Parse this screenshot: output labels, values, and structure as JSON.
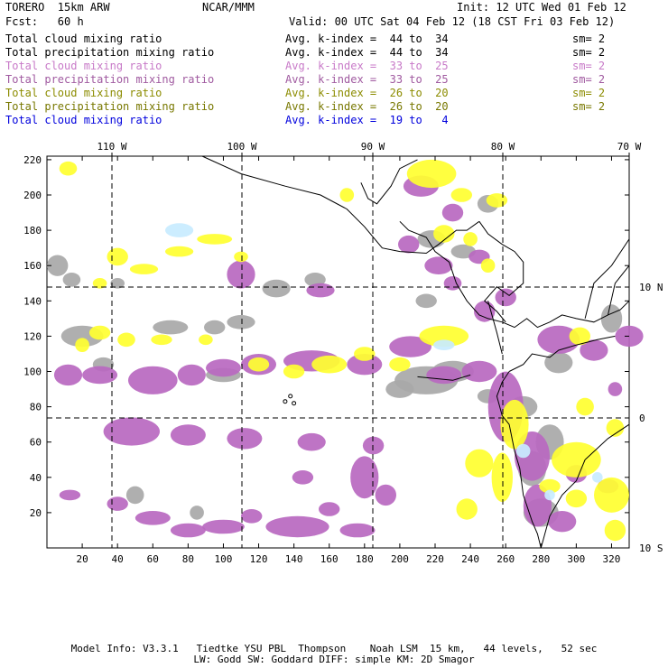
{
  "header": {
    "model": "TORERO  15km ARW",
    "org": "NCAR/MMM",
    "init": "Init: 12 UTC Wed 01 Feb 12",
    "fcst": "Fcst:   60 h",
    "valid": "Valid: 00 UTC Sat 04 Feb 12 (18 CST Fri 03 Feb 12)"
  },
  "legend": [
    {
      "field": "Total cloud mixing ratio",
      "kindex": "Avg. k-index =  44 to  34",
      "sm": "sm= 2",
      "color": "#000000"
    },
    {
      "field": "Total precipitation mixing ratio",
      "kindex": "Avg. k-index =  44 to  34",
      "sm": "sm= 2",
      "color": "#000000"
    },
    {
      "field": "Total cloud mixing ratio",
      "kindex": "Avg. k-index =  33 to  25",
      "sm": "sm= 2",
      "color": "#c87ac8"
    },
    {
      "field": "Total precipitation mixing ratio",
      "kindex": "Avg. k-index =  33 to  25",
      "sm": "sm= 2",
      "color": "#a05aa0"
    },
    {
      "field": "Total cloud mixing ratio",
      "kindex": "Avg. k-index =  26 to  20",
      "sm": "sm= 2",
      "color": "#8c8c00"
    },
    {
      "field": "Total precipitation mixing ratio",
      "kindex": "Avg. k-index =  26 to  20",
      "sm": "sm= 2",
      "color": "#787800"
    },
    {
      "field": "Total cloud mixing ratio",
      "kindex": "Avg. k-index =  19 to   4",
      "sm": "",
      "color": "#0000dd"
    }
  ],
  "map": {
    "lon_labels": [
      "110 W",
      "100 W",
      "90 W",
      "80 W",
      "70 W"
    ],
    "lat_labels": [
      "10 N",
      "0",
      "10 S"
    ],
    "x_ticks": [
      "20",
      "40",
      "60",
      "80",
      "100",
      "120",
      "140",
      "160",
      "180",
      "200",
      "220",
      "240",
      "260",
      "280",
      "300",
      "320"
    ],
    "y_ticks": [
      "20",
      "40",
      "60",
      "80",
      "100",
      "120",
      "140",
      "160",
      "180",
      "200",
      "220"
    ],
    "colors": {
      "gray": "#a8a8a8",
      "purple": "#b868c0",
      "yellow": "#ffff30",
      "lightblue": "#c8ecff",
      "coast": "#000000",
      "grid": "#000000"
    }
  },
  "footer": {
    "line1": "Model Info: V3.3.1   Tiedtke YSU PBL  Thompson    Noah LSM  15 km,   44 levels,   52 sec",
    "line2": "LW: Godd SW: Goddard DIFF: simple KM: 2D Smagor"
  }
}
